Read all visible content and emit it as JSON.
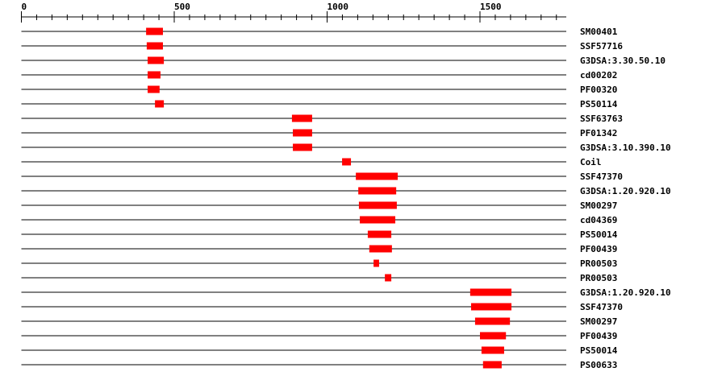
{
  "axis": {
    "min": 0,
    "max": 1780,
    "major_ticks": [
      0,
      500,
      1000,
      1500
    ],
    "minor_step": 50
  },
  "bar_color": "#ff0000",
  "rows": [
    {
      "label": "SM00401",
      "start": 408,
      "end": 463
    },
    {
      "label": "SSF57716",
      "start": 410,
      "end": 463
    },
    {
      "label": "G3DSA:3.30.50.10",
      "start": 413,
      "end": 466
    },
    {
      "label": "cd00202",
      "start": 413,
      "end": 455
    },
    {
      "label": "PF00320",
      "start": 413,
      "end": 452
    },
    {
      "label": "PS50114",
      "start": 437,
      "end": 466
    },
    {
      "label": "SSF63763",
      "start": 885,
      "end": 951
    },
    {
      "label": "PF01342",
      "start": 888,
      "end": 951
    },
    {
      "label": "G3DSA:3.10.390.10",
      "start": 888,
      "end": 951
    },
    {
      "label": "Coil",
      "start": 1049,
      "end": 1078
    },
    {
      "label": "SSF47370",
      "start": 1094,
      "end": 1231
    },
    {
      "label": "G3DSA:1.20.920.10",
      "start": 1102,
      "end": 1226
    },
    {
      "label": "SM00297",
      "start": 1104,
      "end": 1228
    },
    {
      "label": "cd04369",
      "start": 1107,
      "end": 1223
    },
    {
      "label": "PS50014",
      "start": 1133,
      "end": 1210
    },
    {
      "label": "PF00439",
      "start": 1138,
      "end": 1212
    },
    {
      "label": "PR00503",
      "start": 1152,
      "end": 1170
    },
    {
      "label": "PR00503",
      "start": 1189,
      "end": 1210
    },
    {
      "label": "G3DSA:1.20.920.10",
      "start": 1468,
      "end": 1603
    },
    {
      "label": "SSF47370",
      "start": 1471,
      "end": 1603
    },
    {
      "label": "SM00297",
      "start": 1484,
      "end": 1598
    },
    {
      "label": "PF00439",
      "start": 1500,
      "end": 1585
    },
    {
      "label": "PS50014",
      "start": 1505,
      "end": 1579
    },
    {
      "label": "PS00633",
      "start": 1510,
      "end": 1571
    }
  ]
}
